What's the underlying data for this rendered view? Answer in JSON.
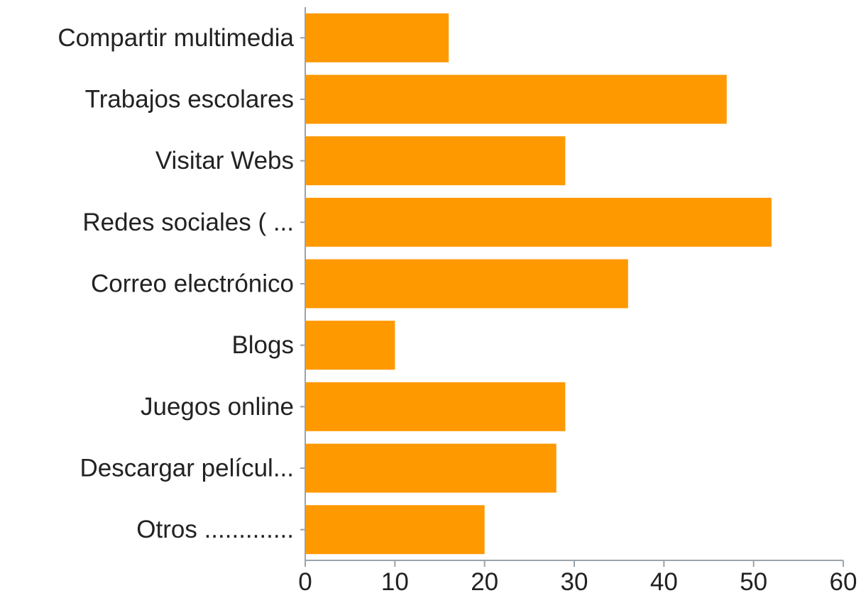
{
  "chart_data": {
    "type": "bar",
    "orientation": "horizontal",
    "title": "",
    "xlabel": "",
    "ylabel": "",
    "categories": [
      "Compartir multimedia",
      "Trabajos escolares",
      "Visitar Webs",
      "Redes sociales ( ...",
      "Correo electrónico",
      "Blogs",
      "Juegos online",
      "Descargar películ...",
      "Otros ............."
    ],
    "values": [
      16,
      47,
      29,
      52,
      36,
      10,
      29,
      28,
      20
    ],
    "xlim": [
      0,
      60
    ],
    "xticks": [
      0,
      10,
      20,
      30,
      40,
      50,
      60
    ],
    "grid": false,
    "legend": "none",
    "colors": {
      "bar": "#ff9900",
      "axis": "#9aa4ad",
      "text": "#222222"
    }
  }
}
